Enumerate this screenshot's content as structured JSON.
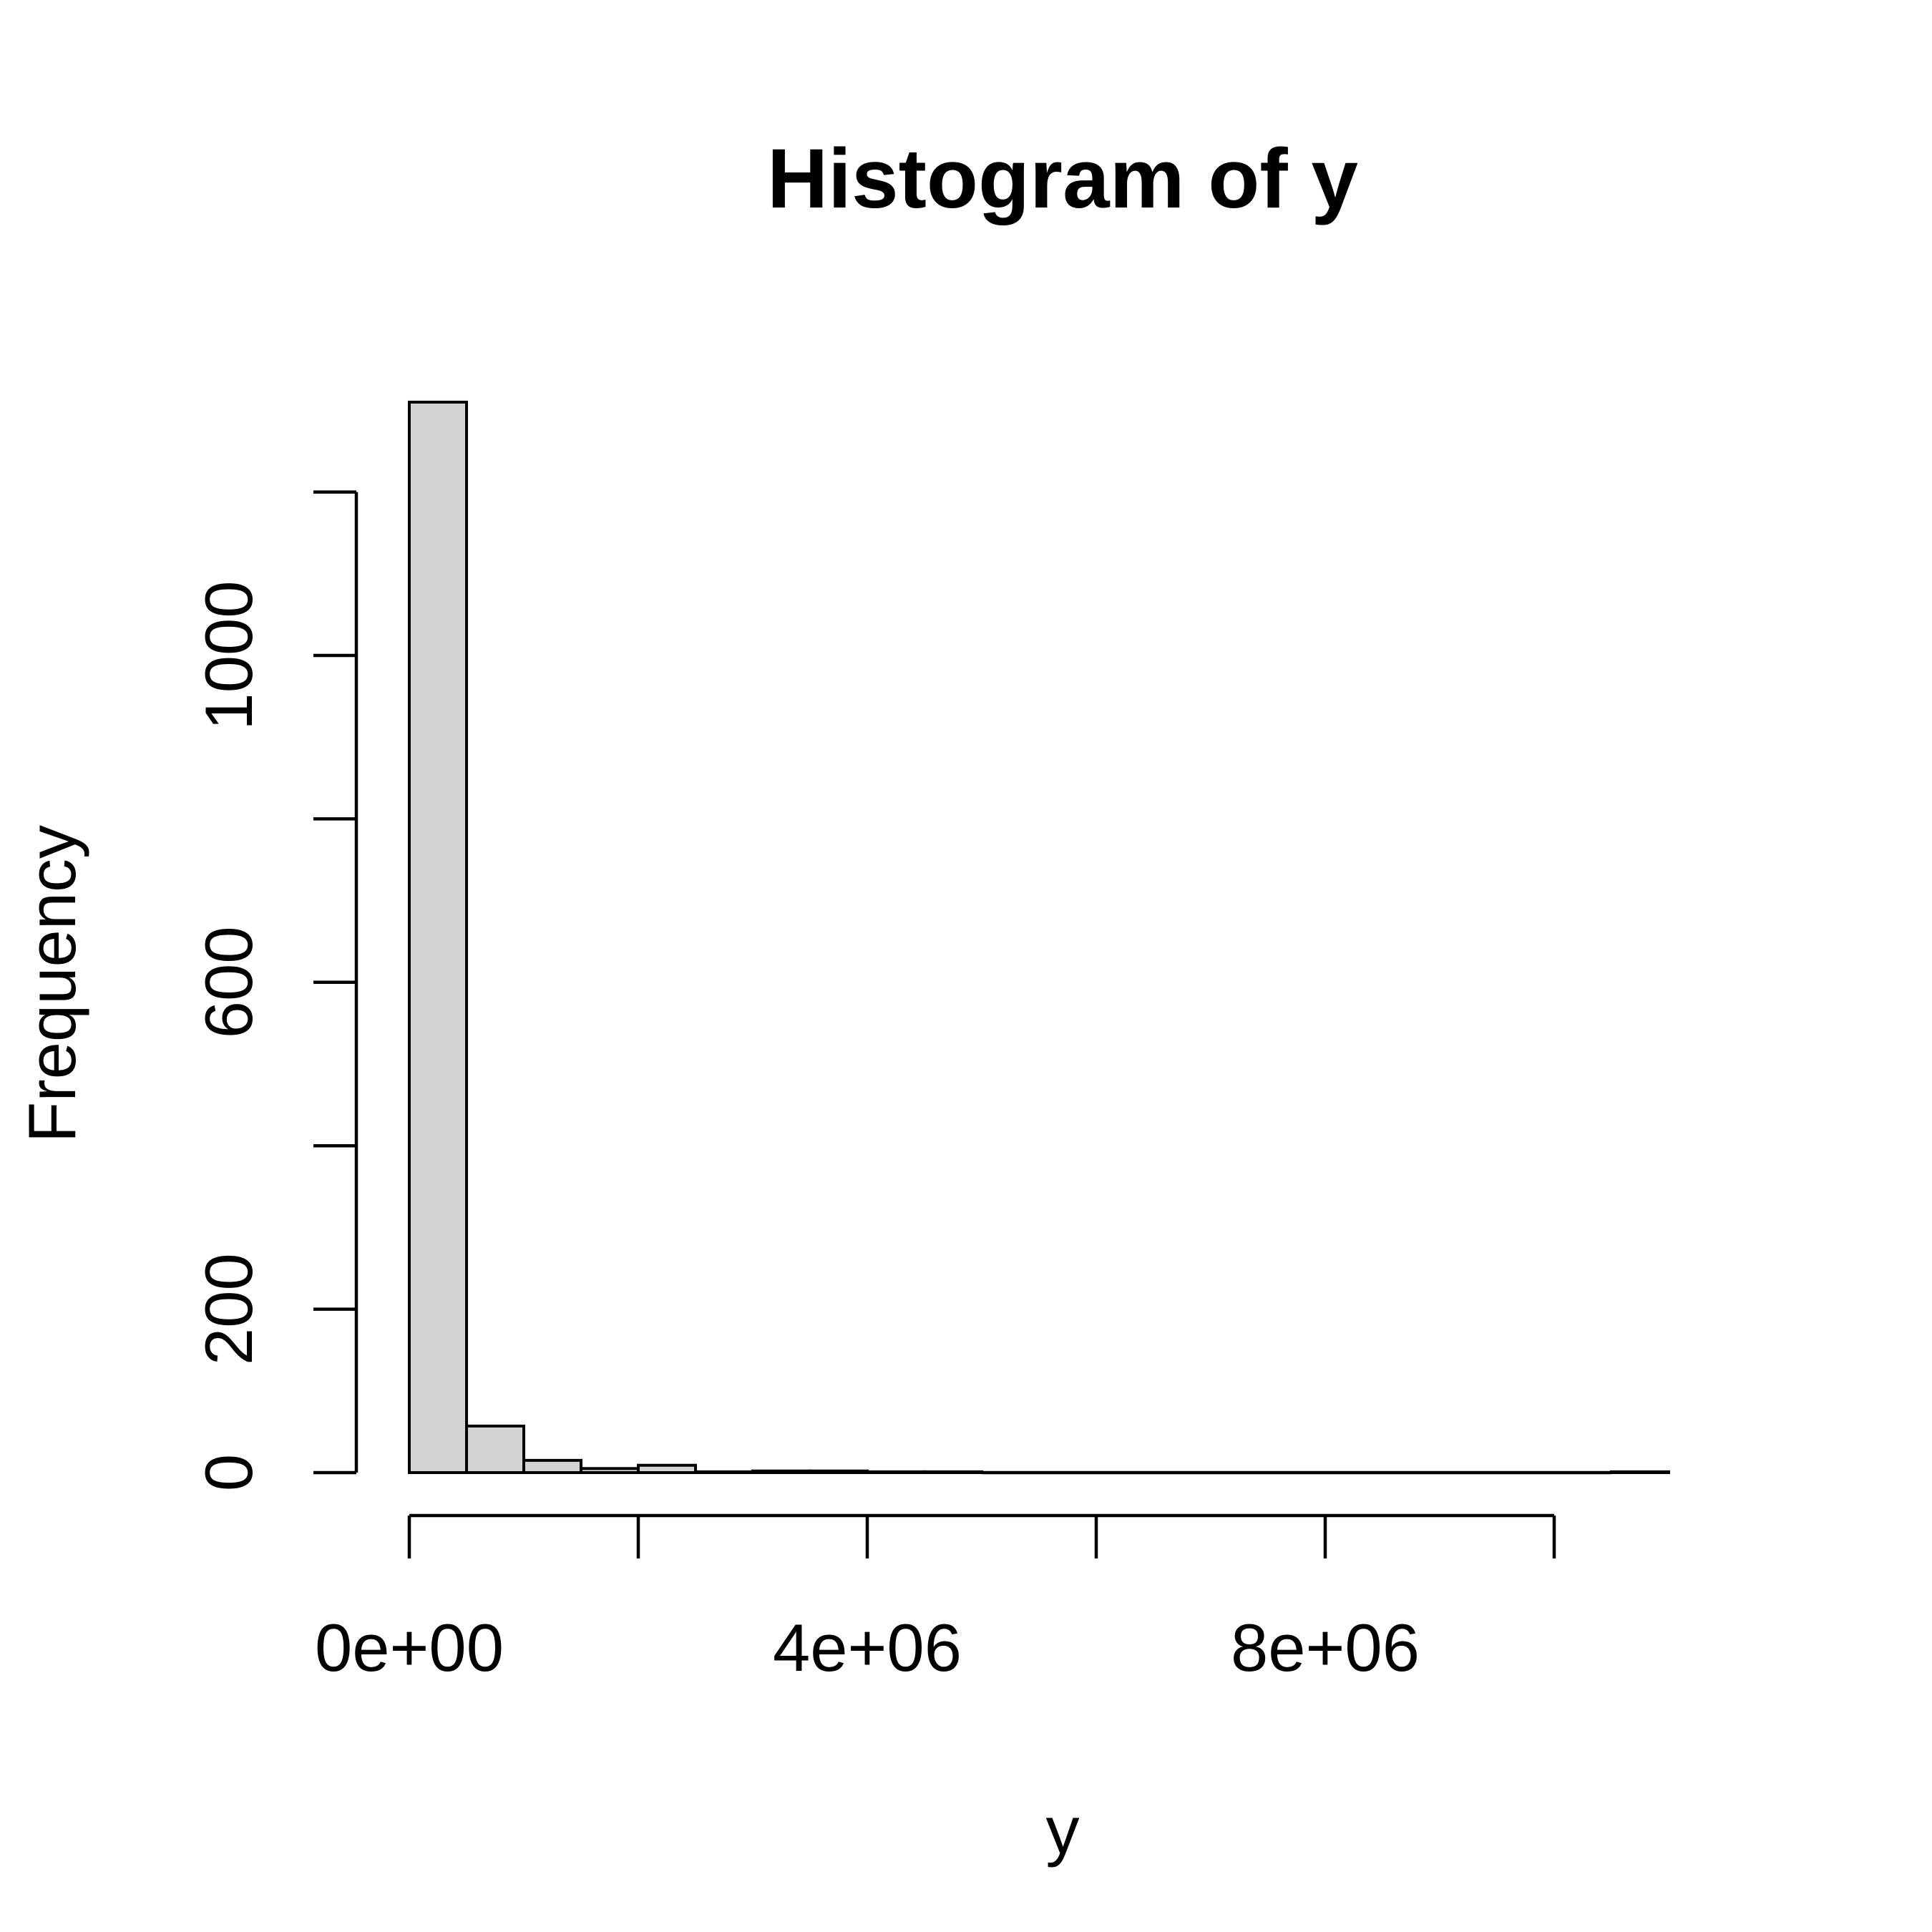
{
  "chart_data": {
    "type": "bar",
    "title": "Histogram of y",
    "xlabel": "y",
    "ylabel": "Frequency",
    "bin_width": 500000,
    "bins": [
      {
        "x0": 0,
        "x1": 500000,
        "count": 1310
      },
      {
        "x0": 500000,
        "x1": 1000000,
        "count": 57
      },
      {
        "x0": 1000000,
        "x1": 1500000,
        "count": 15
      },
      {
        "x0": 1500000,
        "x1": 2000000,
        "count": 5
      },
      {
        "x0": 2000000,
        "x1": 2500000,
        "count": 9
      },
      {
        "x0": 2500000,
        "x1": 3000000,
        "count": 1
      },
      {
        "x0": 3000000,
        "x1": 3500000,
        "count": 2
      },
      {
        "x0": 3500000,
        "x1": 4000000,
        "count": 2
      },
      {
        "x0": 4000000,
        "x1": 4500000,
        "count": 1
      },
      {
        "x0": 4500000,
        "x1": 5000000,
        "count": 1
      },
      {
        "x0": 5000000,
        "x1": 5500000,
        "count": 0
      },
      {
        "x0": 5500000,
        "x1": 6000000,
        "count": 0
      },
      {
        "x0": 6000000,
        "x1": 6500000,
        "count": 0
      },
      {
        "x0": 6500000,
        "x1": 7000000,
        "count": 0
      },
      {
        "x0": 7000000,
        "x1": 7500000,
        "count": 0
      },
      {
        "x0": 7500000,
        "x1": 8000000,
        "count": 0
      },
      {
        "x0": 8000000,
        "x1": 8500000,
        "count": 0
      },
      {
        "x0": 8500000,
        "x1": 9000000,
        "count": 0
      },
      {
        "x0": 9000000,
        "x1": 9500000,
        "count": 0
      },
      {
        "x0": 9500000,
        "x1": 10000000,
        "count": 0
      },
      {
        "x0": 10000000,
        "x1": 10500000,
        "count": 0
      },
      {
        "x0": 10500000,
        "x1": 11000000,
        "count": 1
      }
    ],
    "xlim": [
      0,
      11000000
    ],
    "ylim": [
      0,
      1310
    ],
    "x_ticks": [
      0,
      2000000,
      4000000,
      6000000,
      8000000,
      10000000
    ],
    "x_tick_labels": [
      "0e+00",
      "",
      "4e+06",
      "",
      "8e+06",
      ""
    ],
    "y_ticks": [
      0,
      200,
      400,
      600,
      800,
      1000,
      1200
    ],
    "y_tick_labels": [
      "0",
      "200",
      "",
      "600",
      "",
      "1000",
      ""
    ],
    "grid": false,
    "legend": "none",
    "colors": {
      "bar_fill": "#d3d3d3",
      "bar_stroke": "#000000"
    }
  }
}
